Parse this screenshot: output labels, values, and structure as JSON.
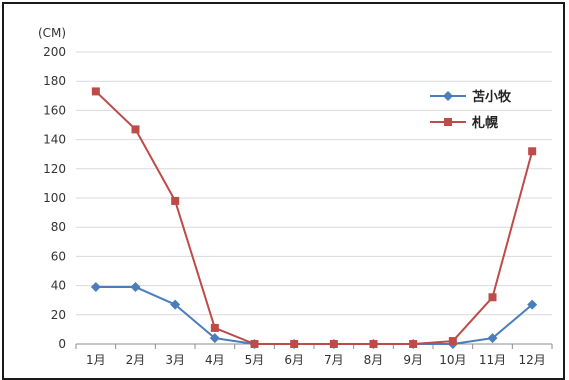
{
  "chart_data": {
    "type": "line",
    "unit_label": "(CM)",
    "title": "",
    "xlabel": "",
    "ylabel": "",
    "categories": [
      "1月",
      "2月",
      "3月",
      "4月",
      "5月",
      "6月",
      "7月",
      "8月",
      "9月",
      "10月",
      "11月",
      "12月"
    ],
    "ylim": [
      0,
      200
    ],
    "yticks": [
      0,
      20,
      40,
      60,
      80,
      100,
      120,
      140,
      160,
      180,
      200
    ],
    "grid": true,
    "legend_position": "top-right",
    "series": [
      {
        "name": "苫小牧",
        "color": "#4a7ebb",
        "marker": "diamond",
        "values": [
          39,
          39,
          27,
          4,
          0,
          0,
          0,
          0,
          0,
          0,
          4,
          27
        ]
      },
      {
        "name": "札幌",
        "color": "#be4b48",
        "marker": "square",
        "values": [
          173,
          147,
          98,
          11,
          0,
          0,
          0,
          0,
          0,
          2,
          32,
          132
        ]
      }
    ]
  }
}
